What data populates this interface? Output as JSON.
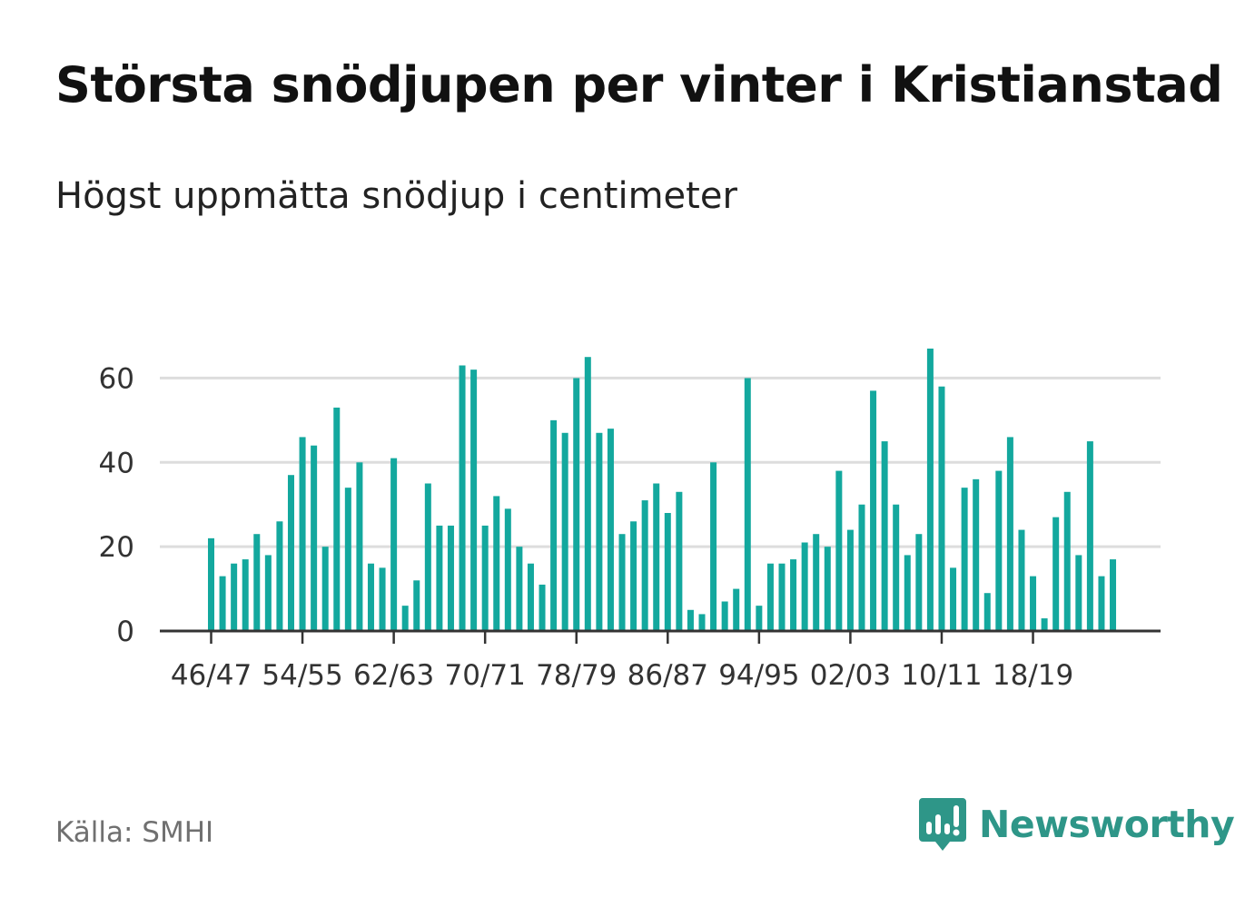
{
  "title": "Största snödjupen per vinter i Kristianstad",
  "subtitle": "Högst uppmätta snödjup i centimeter",
  "source": "Källa: SMHI",
  "brand": {
    "name": "Newsworthy",
    "icon": "newsworthy-logo-icon",
    "color": "#2e9688"
  },
  "chart_data": {
    "type": "bar",
    "title": "Största snödjupen per vinter i Kristianstad",
    "subtitle": "Högst uppmätta snödjup i centimeter",
    "xlabel": "",
    "ylabel": "",
    "ylim": [
      0,
      70
    ],
    "yticks": [
      0,
      20,
      40,
      60
    ],
    "grid": true,
    "bar_color": "#13a89e",
    "categories": [
      "46/47",
      "47/48",
      "48/49",
      "49/50",
      "50/51",
      "51/52",
      "52/53",
      "53/54",
      "54/55",
      "55/56",
      "56/57",
      "57/58",
      "58/59",
      "59/60",
      "60/61",
      "61/62",
      "62/63",
      "63/64",
      "64/65",
      "65/66",
      "66/67",
      "67/68",
      "68/69",
      "69/70",
      "70/71",
      "71/72",
      "72/73",
      "73/74",
      "74/75",
      "75/76",
      "76/77",
      "77/78",
      "78/79",
      "79/80",
      "80/81",
      "81/82",
      "82/83",
      "83/84",
      "84/85",
      "85/86",
      "86/87",
      "87/88",
      "88/89",
      "89/90",
      "90/91",
      "91/92",
      "92/93",
      "93/94",
      "94/95",
      "95/96",
      "96/97",
      "97/98",
      "98/99",
      "99/00",
      "00/01",
      "01/02",
      "02/03",
      "03/04",
      "04/05",
      "05/06",
      "06/07",
      "07/08",
      "08/09",
      "09/10",
      "10/11",
      "11/12",
      "12/13",
      "13/14",
      "14/15",
      "15/16",
      "16/17",
      "17/18",
      "18/19",
      "19/20",
      "20/21",
      "21/22",
      "22/23",
      "23/24",
      "24/25",
      "25/26"
    ],
    "xtick_labels": [
      "46/47",
      "54/55",
      "62/63",
      "70/71",
      "78/79",
      "86/87",
      "94/95",
      "02/03",
      "10/11",
      "18/19"
    ],
    "values": [
      22,
      13,
      16,
      17,
      23,
      18,
      26,
      37,
      46,
      44,
      20,
      53,
      34,
      40,
      16,
      15,
      41,
      6,
      12,
      35,
      25,
      25,
      63,
      62,
      25,
      32,
      29,
      20,
      16,
      11,
      50,
      47,
      60,
      65,
      47,
      48,
      23,
      26,
      31,
      35,
      28,
      33,
      5,
      4,
      40,
      7,
      10,
      60,
      6,
      16,
      16,
      17,
      21,
      23,
      20,
      38,
      24,
      30,
      57,
      45,
      30,
      18,
      23,
      67,
      58,
      15,
      34,
      36,
      9,
      38,
      46,
      24,
      13,
      3,
      27,
      33,
      18,
      45,
      13,
      17
    ]
  }
}
